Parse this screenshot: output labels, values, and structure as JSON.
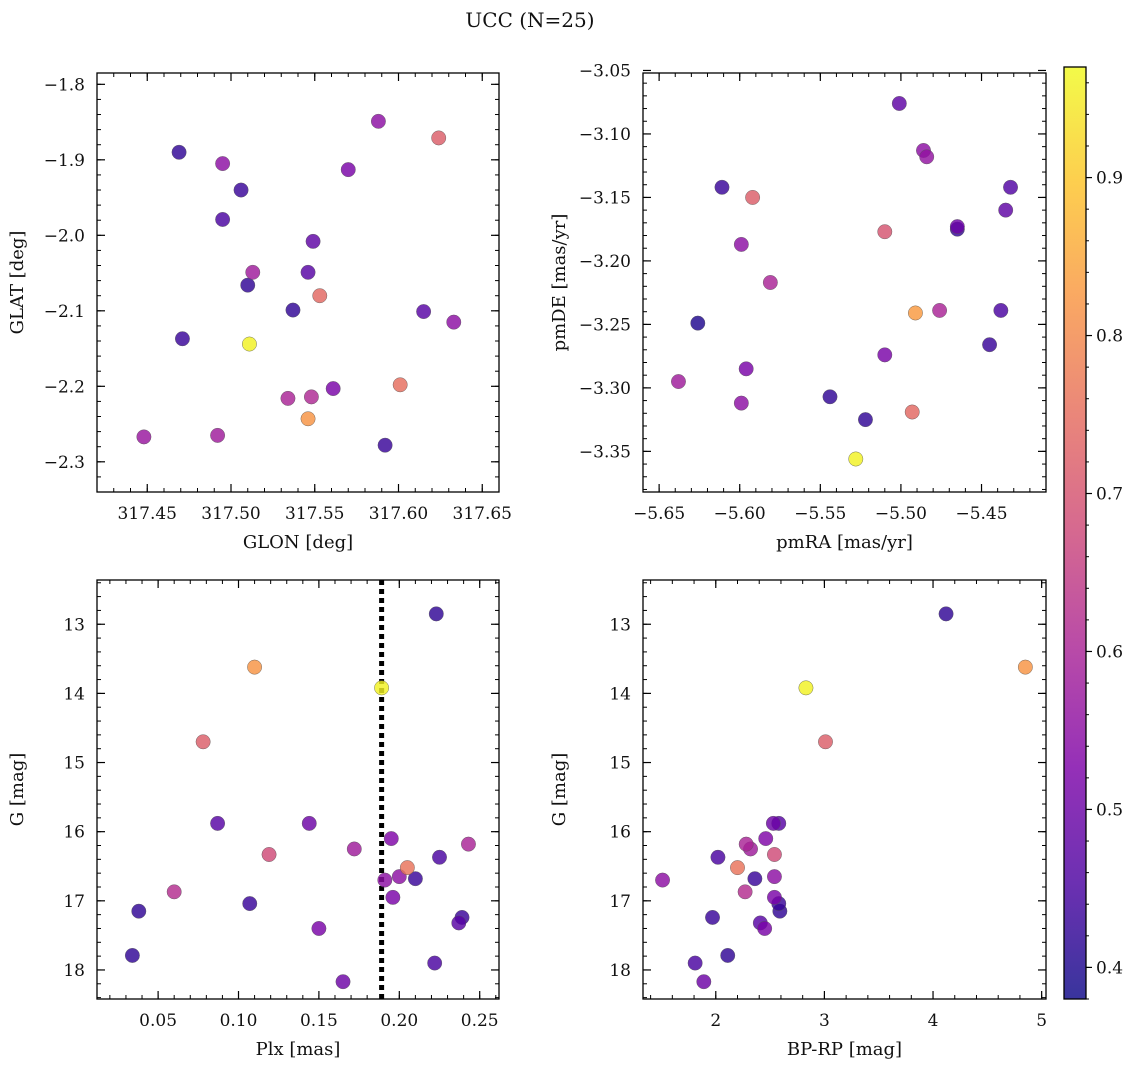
{
  "figure": {
    "title": "UCC (N=25)"
  },
  "colorbar": {
    "range": [
      0.38,
      0.97
    ],
    "ticks": [
      0.4,
      0.5,
      0.6,
      0.7,
      0.8,
      0.9
    ],
    "tick_labels": [
      "0.4",
      "0.5",
      "0.6",
      "0.7",
      "0.8",
      "0.9"
    ],
    "colormap": "plasma"
  },
  "chart_data": [
    {
      "type": "scatter",
      "panel": "top-left",
      "xlabel": "GLON [deg]",
      "ylabel": "GLAT [deg]",
      "xlim": [
        317.42,
        317.66
      ],
      "ylim": [
        -2.34,
        -1.785
      ],
      "y_inverted": false,
      "xticks": [
        317.45,
        317.5,
        317.55,
        317.6,
        317.65
      ],
      "xtick_labels": [
        "317.45",
        "317.50",
        "317.55",
        "317.60",
        "317.65"
      ],
      "yticks": [
        -1.8,
        -1.9,
        -2.0,
        -2.1,
        -2.2,
        -2.3
      ],
      "ytick_labels": [
        "−1.8",
        "−1.9",
        "−2.0",
        "−2.1",
        "−2.2",
        "−2.3"
      ],
      "points": [
        {
          "x": 317.588,
          "y": -1.849,
          "c": 0.55
        },
        {
          "x": 317.624,
          "y": -1.871,
          "c": 0.72
        },
        {
          "x": 317.469,
          "y": -1.89,
          "c": 0.42
        },
        {
          "x": 317.495,
          "y": -1.905,
          "c": 0.55
        },
        {
          "x": 317.57,
          "y": -1.913,
          "c": 0.52
        },
        {
          "x": 317.506,
          "y": -1.94,
          "c": 0.43
        },
        {
          "x": 317.495,
          "y": -1.979,
          "c": 0.45
        },
        {
          "x": 317.549,
          "y": -2.008,
          "c": 0.48
        },
        {
          "x": 317.513,
          "y": -2.049,
          "c": 0.58
        },
        {
          "x": 317.546,
          "y": -2.049,
          "c": 0.47
        },
        {
          "x": 317.51,
          "y": -2.066,
          "c": 0.42
        },
        {
          "x": 317.553,
          "y": -2.08,
          "c": 0.74
        },
        {
          "x": 317.537,
          "y": -2.099,
          "c": 0.42
        },
        {
          "x": 317.615,
          "y": -2.101,
          "c": 0.47
        },
        {
          "x": 317.633,
          "y": -2.115,
          "c": 0.55
        },
        {
          "x": 317.471,
          "y": -2.137,
          "c": 0.43
        },
        {
          "x": 317.511,
          "y": -2.144,
          "c": 0.96
        },
        {
          "x": 317.561,
          "y": -2.203,
          "c": 0.52
        },
        {
          "x": 317.601,
          "y": -2.198,
          "c": 0.75
        },
        {
          "x": 317.534,
          "y": -2.216,
          "c": 0.6
        },
        {
          "x": 317.548,
          "y": -2.214,
          "c": 0.61
        },
        {
          "x": 317.546,
          "y": -2.243,
          "c": 0.82
        },
        {
          "x": 317.592,
          "y": -2.278,
          "c": 0.43
        },
        {
          "x": 317.448,
          "y": -2.267,
          "c": 0.57
        },
        {
          "x": 317.492,
          "y": -2.265,
          "c": 0.58
        }
      ]
    },
    {
      "type": "scatter",
      "panel": "top-right",
      "xlabel": "pmRA [mas/yr]",
      "ylabel": "pmDE [mas/yr]",
      "xlim": [
        -5.66,
        -5.41
      ],
      "ylim": [
        -3.382,
        -3.052
      ],
      "y_inverted": false,
      "xticks": [
        -5.65,
        -5.6,
        -5.55,
        -5.5,
        -5.45
      ],
      "xtick_labels": [
        "−5.65",
        "−5.60",
        "−5.55",
        "−5.50",
        "−5.45"
      ],
      "yticks": [
        -3.05,
        -3.1,
        -3.15,
        -3.2,
        -3.25,
        -3.3,
        -3.35
      ],
      "ytick_labels": [
        "−3.05",
        "−3.10",
        "−3.15",
        "−3.20",
        "−3.25",
        "−3.30",
        "−3.35"
      ],
      "points": [
        {
          "x": -5.501,
          "y": -3.076,
          "c": 0.48
        },
        {
          "x": -5.486,
          "y": -3.113,
          "c": 0.55
        },
        {
          "x": -5.484,
          "y": -3.118,
          "c": 0.56
        },
        {
          "x": -5.611,
          "y": -3.142,
          "c": 0.43
        },
        {
          "x": -5.432,
          "y": -3.142,
          "c": 0.46
        },
        {
          "x": -5.592,
          "y": -3.15,
          "c": 0.72
        },
        {
          "x": -5.435,
          "y": -3.16,
          "c": 0.48
        },
        {
          "x": -5.465,
          "y": -3.173,
          "c": 0.5
        },
        {
          "x": -5.465,
          "y": -3.175,
          "c": 0.42
        },
        {
          "x": -5.51,
          "y": -3.177,
          "c": 0.7
        },
        {
          "x": -5.599,
          "y": -3.187,
          "c": 0.55
        },
        {
          "x": -5.581,
          "y": -3.217,
          "c": 0.6
        },
        {
          "x": -5.476,
          "y": -3.239,
          "c": 0.6
        },
        {
          "x": -5.438,
          "y": -3.239,
          "c": 0.45
        },
        {
          "x": -5.491,
          "y": -3.241,
          "c": 0.83
        },
        {
          "x": -5.626,
          "y": -3.249,
          "c": 0.4
        },
        {
          "x": -5.445,
          "y": -3.266,
          "c": 0.43
        },
        {
          "x": -5.51,
          "y": -3.274,
          "c": 0.52
        },
        {
          "x": -5.596,
          "y": -3.285,
          "c": 0.52
        },
        {
          "x": -5.638,
          "y": -3.295,
          "c": 0.58
        },
        {
          "x": -5.544,
          "y": -3.307,
          "c": 0.42
        },
        {
          "x": -5.599,
          "y": -3.312,
          "c": 0.55
        },
        {
          "x": -5.493,
          "y": -3.319,
          "c": 0.74
        },
        {
          "x": -5.522,
          "y": -3.325,
          "c": 0.42
        },
        {
          "x": -5.528,
          "y": -3.356,
          "c": 0.96
        }
      ]
    },
    {
      "type": "scatter",
      "panel": "bottom-left",
      "xlabel": "Plx [mas]",
      "ylabel": "G [mag]",
      "xlim": [
        0.012,
        0.262
      ],
      "ylim": [
        18.42,
        12.36
      ],
      "y_inverted": true,
      "xticks": [
        0.05,
        0.1,
        0.15,
        0.2,
        0.25
      ],
      "xtick_labels": [
        "0.05",
        "0.10",
        "0.15",
        "0.20",
        "0.25"
      ],
      "yticks": [
        13,
        14,
        15,
        16,
        17,
        18
      ],
      "ytick_labels": [
        "13",
        "14",
        "15",
        "16",
        "17",
        "18"
      ],
      "vline": {
        "x": 0.189,
        "style": "dotted"
      },
      "points": [
        {
          "x": 0.223,
          "y": 12.85,
          "c": 0.42
        },
        {
          "x": 0.11,
          "y": 13.62,
          "c": 0.82
        },
        {
          "x": 0.189,
          "y": 13.92,
          "c": 0.96
        },
        {
          "x": 0.078,
          "y": 14.7,
          "c": 0.72
        },
        {
          "x": 0.087,
          "y": 15.88,
          "c": 0.47
        },
        {
          "x": 0.144,
          "y": 15.88,
          "c": 0.5
        },
        {
          "x": 0.195,
          "y": 16.1,
          "c": 0.53
        },
        {
          "x": 0.243,
          "y": 16.18,
          "c": 0.6
        },
        {
          "x": 0.172,
          "y": 16.25,
          "c": 0.58
        },
        {
          "x": 0.119,
          "y": 16.33,
          "c": 0.68
        },
        {
          "x": 0.225,
          "y": 16.37,
          "c": 0.45
        },
        {
          "x": 0.205,
          "y": 16.52,
          "c": 0.76
        },
        {
          "x": 0.2,
          "y": 16.65,
          "c": 0.55
        },
        {
          "x": 0.21,
          "y": 16.68,
          "c": 0.43
        },
        {
          "x": 0.191,
          "y": 16.7,
          "c": 0.55
        },
        {
          "x": 0.06,
          "y": 16.87,
          "c": 0.62
        },
        {
          "x": 0.196,
          "y": 16.95,
          "c": 0.52
        },
        {
          "x": 0.107,
          "y": 17.04,
          "c": 0.43
        },
        {
          "x": 0.038,
          "y": 17.15,
          "c": 0.42
        },
        {
          "x": 0.239,
          "y": 17.24,
          "c": 0.43
        },
        {
          "x": 0.237,
          "y": 17.32,
          "c": 0.47
        },
        {
          "x": 0.15,
          "y": 17.4,
          "c": 0.52
        },
        {
          "x": 0.222,
          "y": 17.9,
          "c": 0.45
        },
        {
          "x": 0.034,
          "y": 17.79,
          "c": 0.42
        },
        {
          "x": 0.165,
          "y": 18.17,
          "c": 0.5
        }
      ]
    },
    {
      "type": "scatter",
      "panel": "bottom-right",
      "xlabel": "BP-RP [mag]",
      "ylabel": "G [mag]",
      "xlim": [
        1.33,
        5.04
      ],
      "ylim": [
        18.42,
        12.36
      ],
      "y_inverted": true,
      "xticks": [
        2,
        3,
        4,
        5
      ],
      "xtick_labels": [
        "2",
        "3",
        "4",
        "5"
      ],
      "yticks": [
        13,
        14,
        15,
        16,
        17,
        18
      ],
      "ytick_labels": [
        "13",
        "14",
        "15",
        "16",
        "17",
        "18"
      ],
      "points": [
        {
          "x": 4.12,
          "y": 12.85,
          "c": 0.42
        },
        {
          "x": 4.85,
          "y": 13.62,
          "c": 0.82
        },
        {
          "x": 2.83,
          "y": 13.92,
          "c": 0.96
        },
        {
          "x": 3.01,
          "y": 14.7,
          "c": 0.72
        },
        {
          "x": 2.58,
          "y": 15.88,
          "c": 0.47
        },
        {
          "x": 2.53,
          "y": 15.88,
          "c": 0.5
        },
        {
          "x": 2.46,
          "y": 16.1,
          "c": 0.53
        },
        {
          "x": 2.28,
          "y": 16.18,
          "c": 0.6
        },
        {
          "x": 2.32,
          "y": 16.25,
          "c": 0.58
        },
        {
          "x": 2.54,
          "y": 16.33,
          "c": 0.68
        },
        {
          "x": 2.02,
          "y": 16.37,
          "c": 0.45
        },
        {
          "x": 2.2,
          "y": 16.52,
          "c": 0.76
        },
        {
          "x": 2.54,
          "y": 16.65,
          "c": 0.55
        },
        {
          "x": 2.36,
          "y": 16.68,
          "c": 0.43
        },
        {
          "x": 1.51,
          "y": 16.7,
          "c": 0.55
        },
        {
          "x": 2.27,
          "y": 16.87,
          "c": 0.62
        },
        {
          "x": 2.54,
          "y": 16.95,
          "c": 0.52
        },
        {
          "x": 2.58,
          "y": 17.04,
          "c": 0.43
        },
        {
          "x": 2.59,
          "y": 17.15,
          "c": 0.42
        },
        {
          "x": 1.97,
          "y": 17.24,
          "c": 0.43
        },
        {
          "x": 2.41,
          "y": 17.32,
          "c": 0.47
        },
        {
          "x": 2.45,
          "y": 17.4,
          "c": 0.52
        },
        {
          "x": 1.81,
          "y": 17.9,
          "c": 0.45
        },
        {
          "x": 2.11,
          "y": 17.79,
          "c": 0.42
        },
        {
          "x": 1.89,
          "y": 18.17,
          "c": 0.5
        }
      ]
    }
  ]
}
